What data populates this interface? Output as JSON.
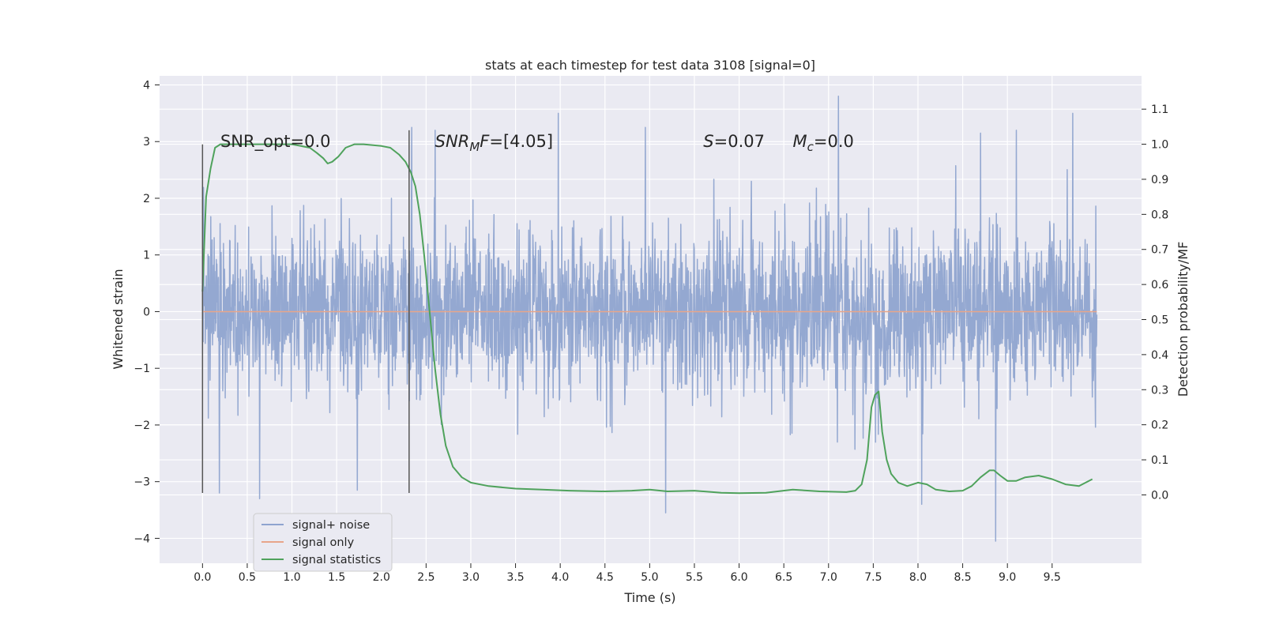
{
  "chart_data": {
    "type": "line",
    "title": "stats at each timestep for test data 3108 [signal=0]",
    "xlabel": "Time (s)",
    "ylabel_left": "Whitened strain",
    "ylabel_right": "Detection probability/MF",
    "xlim": [
      -0.48,
      10.5
    ],
    "ylim_left": [
      -4.44,
      4.16
    ],
    "ylim_right": [
      -0.195,
      1.195
    ],
    "x_ticks": [
      0.0,
      0.5,
      1.0,
      1.5,
      2.0,
      2.5,
      3.0,
      3.5,
      4.0,
      4.5,
      5.0,
      5.5,
      6.0,
      6.5,
      7.0,
      7.5,
      8.0,
      8.5,
      9.0,
      9.5
    ],
    "x_tick_labels": [
      "0.0",
      "0.5",
      "1.0",
      "1.5",
      "2.0",
      "2.5",
      "3.0",
      "3.5",
      "4.0",
      "4.5",
      "5.0",
      "5.5",
      "6.0",
      "6.5",
      "7.0",
      "7.5",
      "8.0",
      "8.5",
      "9.0",
      "9.5"
    ],
    "y_left_ticks": [
      -4,
      -3,
      -2,
      -1,
      0,
      1,
      2,
      3,
      4
    ],
    "y_left_tick_labels": [
      "−4",
      "−3",
      "−2",
      "−1",
      "0",
      "1",
      "2",
      "3",
      "4"
    ],
    "y_right_ticks": [
      0.0,
      0.1,
      0.2,
      0.3,
      0.4,
      0.5,
      0.6,
      0.7,
      0.8,
      0.9,
      1.0,
      1.1
    ],
    "y_right_tick_labels": [
      "0.0",
      "0.1",
      "0.2",
      "0.3",
      "0.4",
      "0.5",
      "0.6",
      "0.7",
      "0.8",
      "0.9",
      "1.0",
      "1.1"
    ],
    "grid": true,
    "legend_placement": "lower-left",
    "annotations": [
      {
        "x": 0.2,
        "y": 3.0,
        "parts": [
          {
            "t": "SNR_opt=0.0",
            "it": false
          }
        ]
      },
      {
        "x": 2.6,
        "y": 3.0,
        "parts": [
          {
            "t": "SNR",
            "it": true
          },
          {
            "t": "M",
            "it": true,
            "sub": true
          },
          {
            "t": "F",
            "it": true
          },
          {
            "t": "=[4.05]",
            "it": false
          }
        ]
      },
      {
        "x": 5.6,
        "y": 3.0,
        "parts": [
          {
            "t": "S",
            "it": true
          },
          {
            "t": "=0.07",
            "it": false
          }
        ]
      },
      {
        "x": 6.6,
        "y": 3.0,
        "parts": [
          {
            "t": "M",
            "it": true
          },
          {
            "t": "c",
            "it": true,
            "sub": true
          },
          {
            "t": "=0.0",
            "it": false
          }
        ]
      }
    ],
    "vertical_lines": [
      {
        "x": 0.0,
        "y_from": -3.2,
        "y_to": 2.95,
        "color": "#555555"
      },
      {
        "x": 2.31,
        "y_from": -3.2,
        "y_to": 3.2,
        "color": "#555555"
      }
    ],
    "noise": {
      "x_range": [
        0.0,
        10.0
      ],
      "samples": 2600,
      "sigma": 0.72,
      "seed": 3108,
      "color": "#8fa4cf",
      "spikes": [
        {
          "x": 7.11,
          "y": 3.8
        },
        {
          "x": 3.98,
          "y": 3.5
        },
        {
          "x": 9.73,
          "y": 3.5
        },
        {
          "x": 8.87,
          "y": -4.05
        },
        {
          "x": 5.18,
          "y": -3.55
        },
        {
          "x": 0.64,
          "y": -3.3
        },
        {
          "x": 8.04,
          "y": -3.4
        },
        {
          "x": 2.34,
          "y": 3.25
        },
        {
          "x": 2.6,
          "y": 3.2
        },
        {
          "x": 1.73,
          "y": -3.15
        },
        {
          "x": 0.19,
          "y": -3.2
        },
        {
          "x": 9.1,
          "y": 3.2
        },
        {
          "x": 4.95,
          "y": 3.25
        },
        {
          "x": 8.7,
          "y": 3.15
        }
      ]
    },
    "series": [
      {
        "name": "signal+ noise",
        "color": "#8fa4cf",
        "axis": "left",
        "legend_only": true
      },
      {
        "name": "signal only",
        "color": "#e8a58a",
        "axis": "left",
        "x": [
          0.0,
          10.0
        ],
        "y": [
          0.0,
          0.0
        ]
      },
      {
        "name": "signal statistics",
        "color": "#4fa25c",
        "axis": "right",
        "x": [
          0.0,
          0.04,
          0.09,
          0.14,
          0.2,
          0.3,
          0.5,
          0.8,
          1.0,
          1.2,
          1.28,
          1.35,
          1.4,
          1.45,
          1.52,
          1.6,
          1.7,
          1.8,
          2.0,
          2.1,
          2.2,
          2.27,
          2.33,
          2.38,
          2.43,
          2.48,
          2.54,
          2.6,
          2.66,
          2.72,
          2.8,
          2.9,
          3.0,
          3.2,
          3.5,
          3.8,
          4.1,
          4.5,
          4.8,
          5.0,
          5.2,
          5.5,
          5.8,
          6.0,
          6.3,
          6.6,
          6.9,
          7.2,
          7.3,
          7.37,
          7.43,
          7.48,
          7.52,
          7.56,
          7.6,
          7.65,
          7.7,
          7.78,
          7.88,
          8.0,
          8.1,
          8.2,
          8.35,
          8.5,
          8.6,
          8.7,
          8.8,
          8.85,
          8.92,
          9.0,
          9.1,
          9.2,
          9.35,
          9.5,
          9.65,
          9.8,
          9.95
        ],
        "y": [
          0.58,
          0.85,
          0.93,
          0.99,
          1.0,
          1.0,
          1.0,
          1.0,
          1.0,
          0.99,
          0.975,
          0.96,
          0.945,
          0.95,
          0.965,
          0.99,
          1.0,
          1.0,
          0.995,
          0.99,
          0.97,
          0.95,
          0.92,
          0.88,
          0.8,
          0.68,
          0.52,
          0.36,
          0.23,
          0.14,
          0.08,
          0.05,
          0.035,
          0.025,
          0.018,
          0.015,
          0.012,
          0.01,
          0.012,
          0.015,
          0.01,
          0.012,
          0.006,
          0.005,
          0.006,
          0.015,
          0.01,
          0.008,
          0.012,
          0.03,
          0.1,
          0.25,
          0.285,
          0.295,
          0.18,
          0.1,
          0.06,
          0.035,
          0.025,
          0.035,
          0.03,
          0.015,
          0.01,
          0.012,
          0.025,
          0.05,
          0.07,
          0.07,
          0.055,
          0.04,
          0.04,
          0.05,
          0.055,
          0.045,
          0.03,
          0.025,
          0.045
        ]
      }
    ]
  }
}
